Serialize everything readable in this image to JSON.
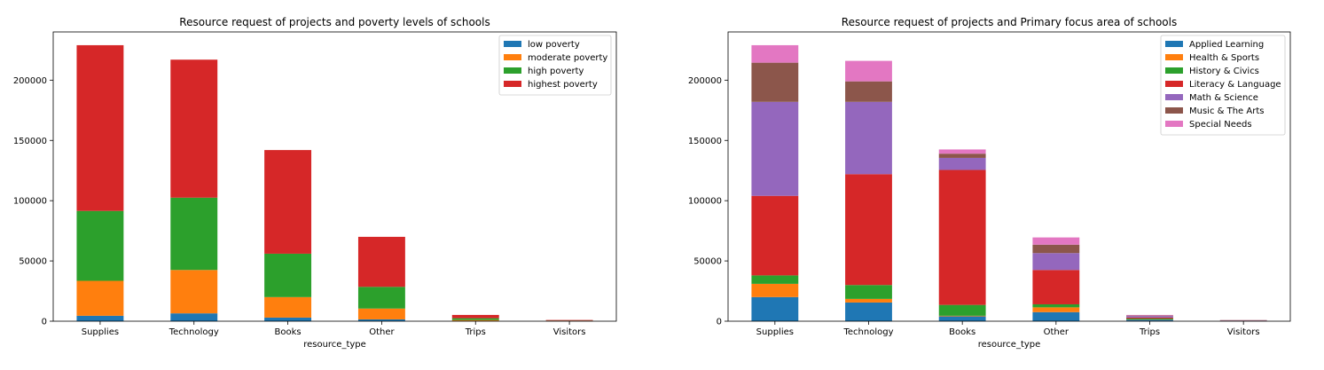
{
  "chart_data": [
    {
      "type": "bar",
      "stacked": true,
      "title": "Resource request of projects and poverty levels of schools",
      "xlabel": "resource_type",
      "ylabel": "",
      "categories": [
        "Supplies",
        "Technology",
        "Books",
        "Other",
        "Trips",
        "Visitors"
      ],
      "ylim": [
        0,
        240000
      ],
      "yticks": [
        "0",
        "50000",
        "100000",
        "150000",
        "200000"
      ],
      "legend_position": "top-right",
      "grid": false,
      "series": [
        {
          "name": "low poverty",
          "color": "#1f77b4",
          "values": [
            4500,
            6500,
            3000,
            1500,
            200,
            50
          ]
        },
        {
          "name": "moderate poverty",
          "color": "#ff7f0e",
          "values": [
            29000,
            36000,
            17000,
            9000,
            800,
            150
          ]
        },
        {
          "name": "high poverty",
          "color": "#2ca02c",
          "values": [
            58000,
            60000,
            36000,
            18000,
            1500,
            300
          ]
        },
        {
          "name": "highest poverty",
          "color": "#d62728",
          "values": [
            137500,
            114500,
            86000,
            41500,
            2700,
            500
          ]
        }
      ]
    },
    {
      "type": "bar",
      "stacked": true,
      "title": "Resource request of projects and Primary focus area of schools",
      "xlabel": "resource_type",
      "ylabel": "",
      "categories": [
        "Supplies",
        "Technology",
        "Books",
        "Other",
        "Trips",
        "Visitors"
      ],
      "ylim": [
        0,
        240000
      ],
      "yticks": [
        "0",
        "50000",
        "100000",
        "150000",
        "200000"
      ],
      "legend_position": "top-right",
      "grid": false,
      "series": [
        {
          "name": "Applied Learning",
          "color": "#1f77b4",
          "values": [
            20000,
            15500,
            4000,
            7500,
            1200,
            100
          ]
        },
        {
          "name": "Health & Sports",
          "color": "#ff7f0e",
          "values": [
            11000,
            3000,
            500,
            4000,
            200,
            50
          ]
        },
        {
          "name": "History & Civics",
          "color": "#2ca02c",
          "values": [
            7000,
            11500,
            9000,
            2500,
            800,
            50
          ]
        },
        {
          "name": "Literacy & Language",
          "color": "#d62728",
          "values": [
            66000,
            92000,
            112000,
            28500,
            800,
            200
          ]
        },
        {
          "name": "Math & Science",
          "color": "#9467bd",
          "values": [
            78000,
            60000,
            10000,
            14000,
            1200,
            200
          ]
        },
        {
          "name": "Music & The Arts",
          "color": "#8c564b",
          "values": [
            32500,
            17000,
            3500,
            7000,
            500,
            300
          ]
        },
        {
          "name": "Special Needs",
          "color": "#e377c2",
          "values": [
            14500,
            17000,
            3500,
            6000,
            500,
            100
          ]
        }
      ]
    }
  ]
}
